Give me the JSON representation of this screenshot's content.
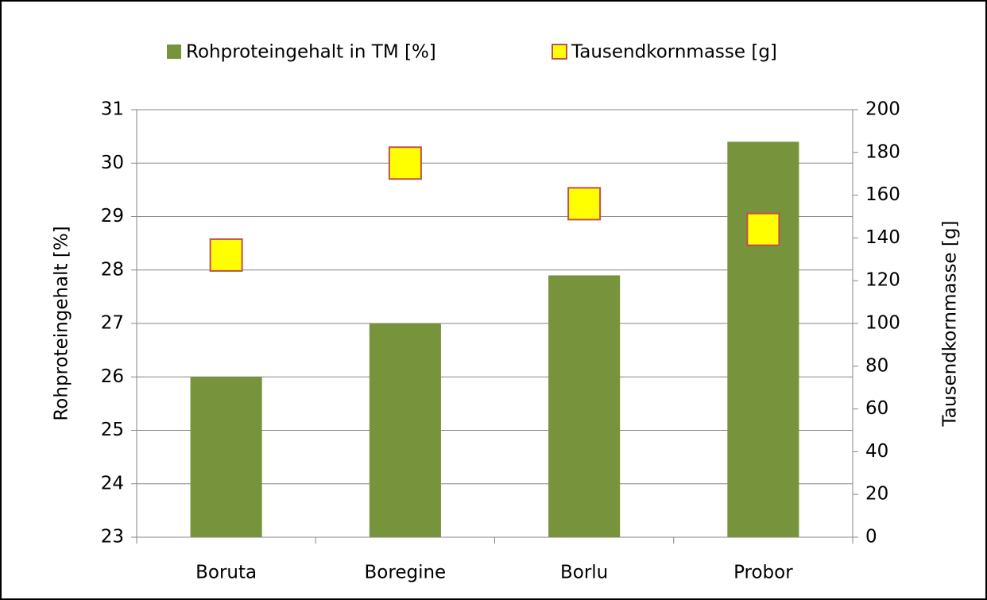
{
  "chart_data": {
    "type": "bar",
    "categories": [
      "Boruta",
      "Boregine",
      "Borlu",
      "Probor"
    ],
    "series": [
      {
        "name": "Rohproteingehalt in TM [%]",
        "color": "#77933c",
        "values": [
          26,
          27,
          27.9,
          30.4
        ]
      },
      {
        "name": "Tausendkornmasse [g]",
        "color": "#ffff00",
        "edge_color": "#c0504d",
        "marker": "square",
        "axis": "y2",
        "values": [
          132,
          175,
          156,
          144
        ]
      }
    ],
    "ylabel": "Rohproteingehalt [%]",
    "y2label": "Tausendkornmasse [g]",
    "ylim": [
      23,
      31
    ],
    "yticks": [
      23,
      24,
      25,
      26,
      27,
      28,
      29,
      30,
      31
    ],
    "y2lim": [
      0,
      200
    ],
    "y2ticks": [
      0,
      20,
      40,
      60,
      80,
      100,
      120,
      140,
      160,
      180,
      200
    ],
    "grid": true,
    "legend": "top"
  }
}
